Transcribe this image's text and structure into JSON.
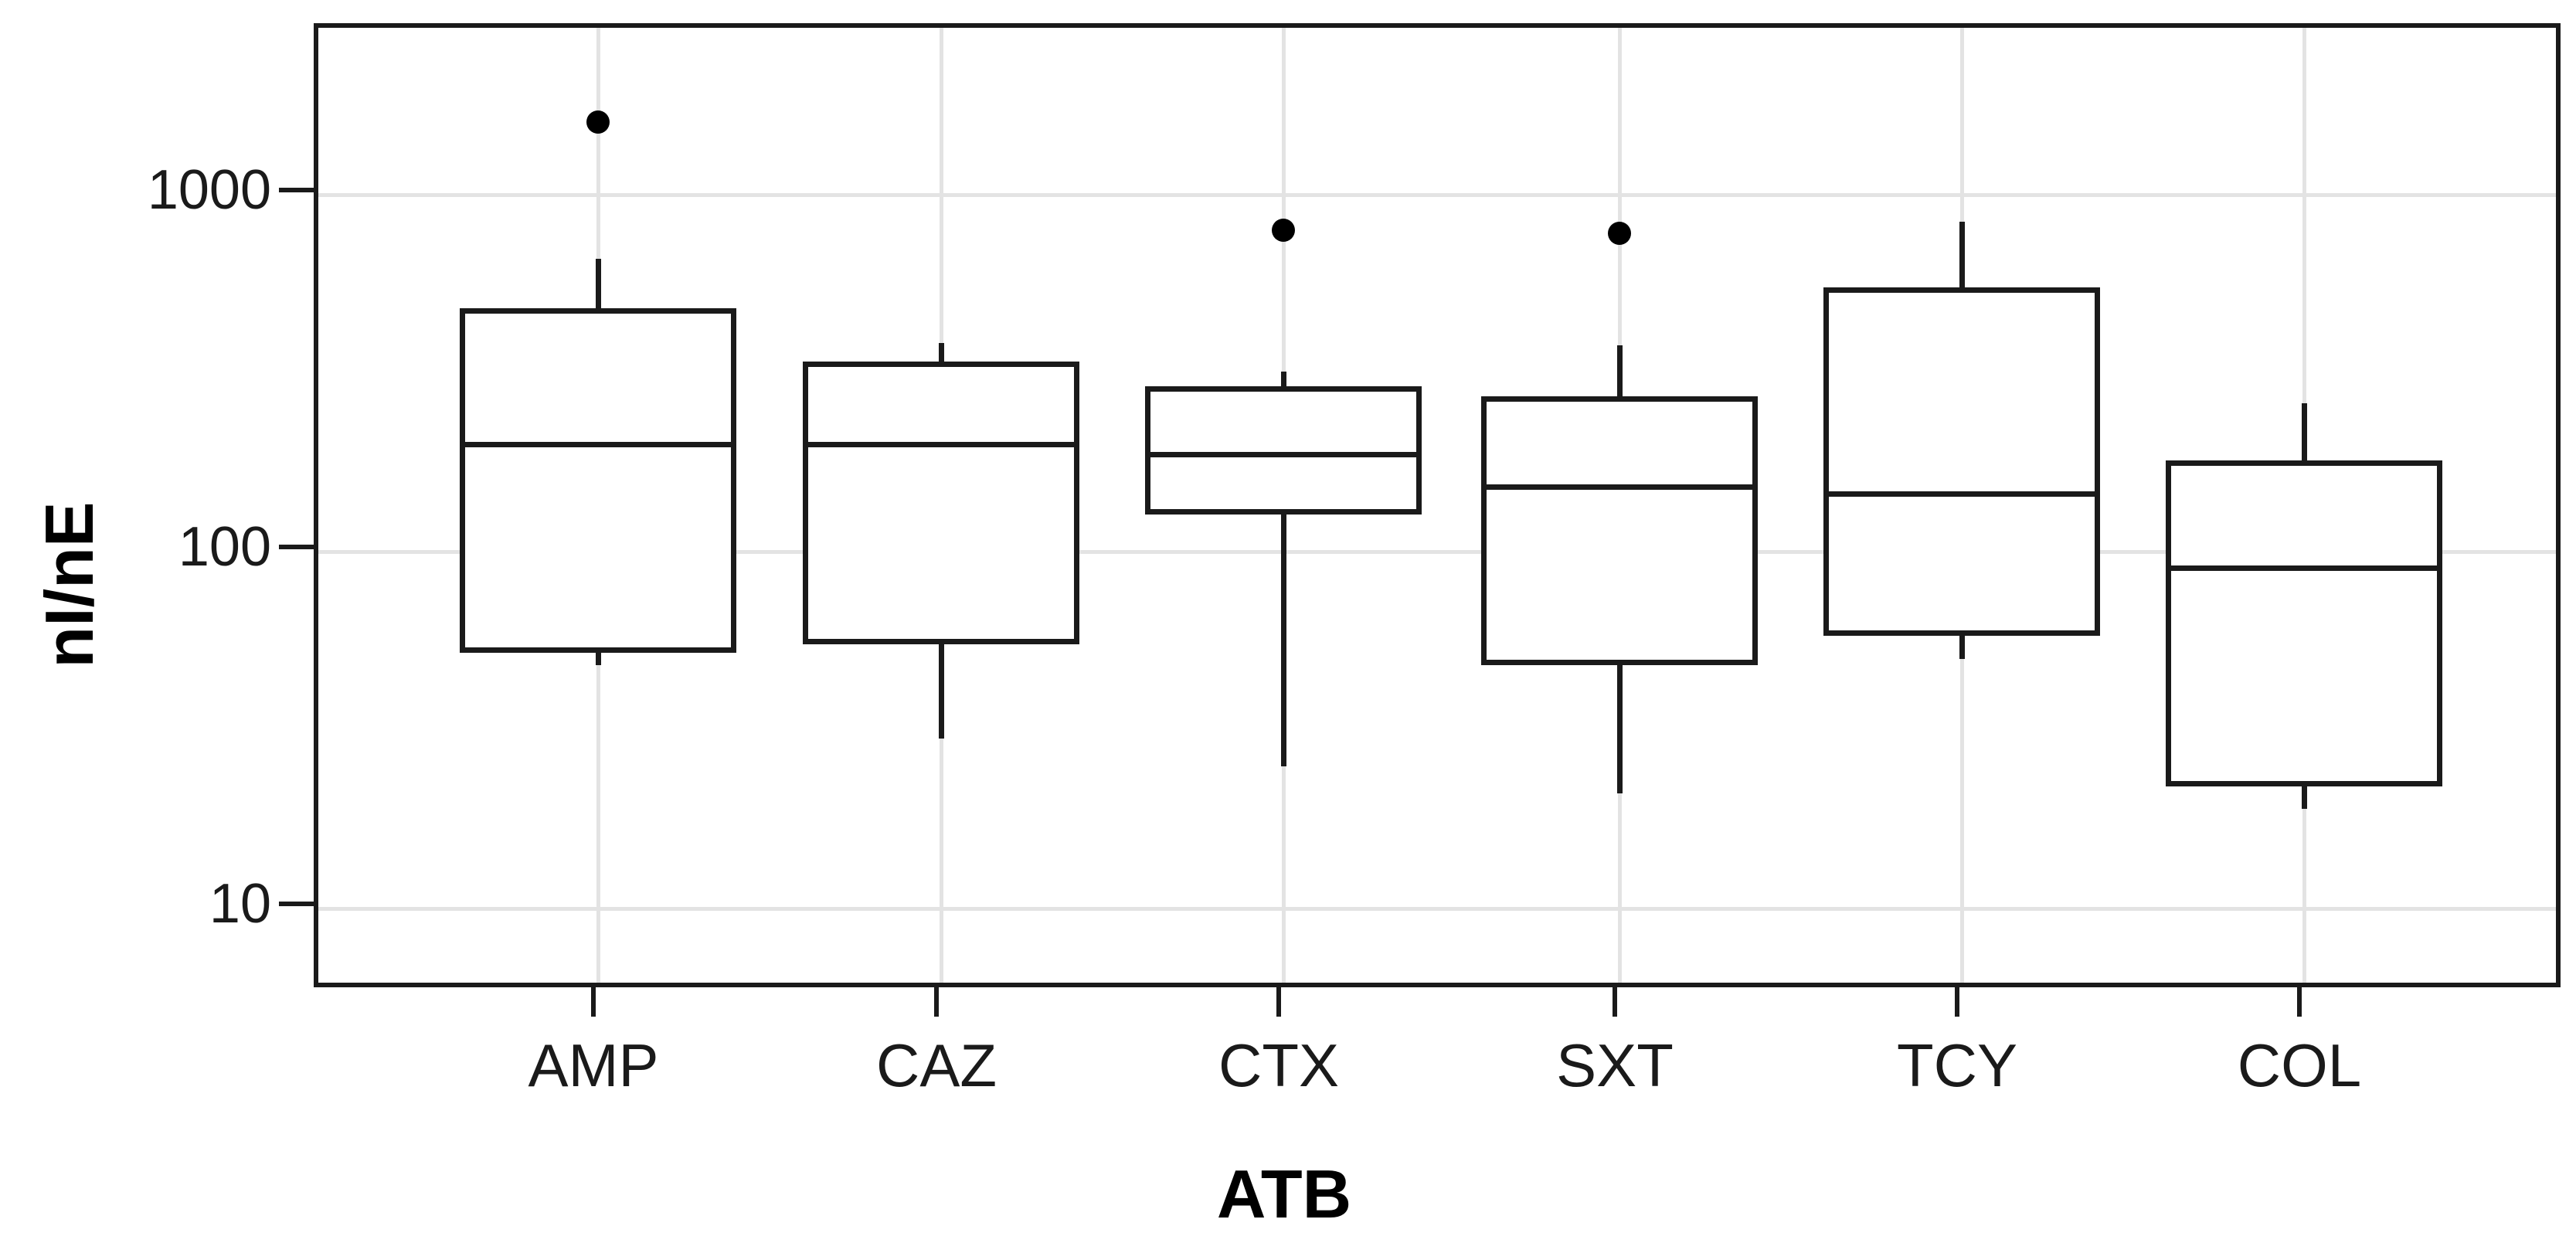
{
  "chart_data": {
    "type": "box",
    "title": "",
    "xlabel": "ATB",
    "ylabel": "nI/nE",
    "y_scale": "log10",
    "ylim": [
      6,
      2900
    ],
    "grid": "on",
    "legend": "none",
    "y_ticks": [
      {
        "value": 1000,
        "label": "1000"
      },
      {
        "value": 100,
        "label": "100"
      },
      {
        "value": 10,
        "label": "10"
      }
    ],
    "categories": [
      "AMP",
      "CAZ",
      "CTX",
      "SXT",
      "TCY",
      "COL"
    ],
    "boxes": [
      {
        "category": "AMP",
        "whisker_low": 48,
        "q1": 52,
        "median": 200,
        "q3": 480,
        "whisker_high": 660,
        "outliers": [
          1600
        ]
      },
      {
        "category": "CAZ",
        "whisker_low": 30,
        "q1": 55,
        "median": 200,
        "q3": 340,
        "whisker_high": 385,
        "outliers": []
      },
      {
        "category": "CTX",
        "whisker_low": 25,
        "q1": 127,
        "median": 187,
        "q3": 290,
        "whisker_high": 320,
        "outliers": [
          795
        ]
      },
      {
        "category": "SXT",
        "whisker_low": 21,
        "q1": 48,
        "median": 152,
        "q3": 272,
        "whisker_high": 378,
        "outliers": [
          780
        ]
      },
      {
        "category": "TCY",
        "whisker_low": 50,
        "q1": 58,
        "median": 145,
        "q3": 550,
        "whisker_high": 840,
        "outliers": []
      },
      {
        "category": "COL",
        "whisker_low": 19,
        "q1": 22,
        "median": 90,
        "q3": 180,
        "whisker_high": 260,
        "outliers": []
      }
    ],
    "colors": {
      "ink": "#000000",
      "box_stroke": "#1a1a1a",
      "gridline": "#e3e3e3",
      "background": "#ffffff"
    }
  }
}
